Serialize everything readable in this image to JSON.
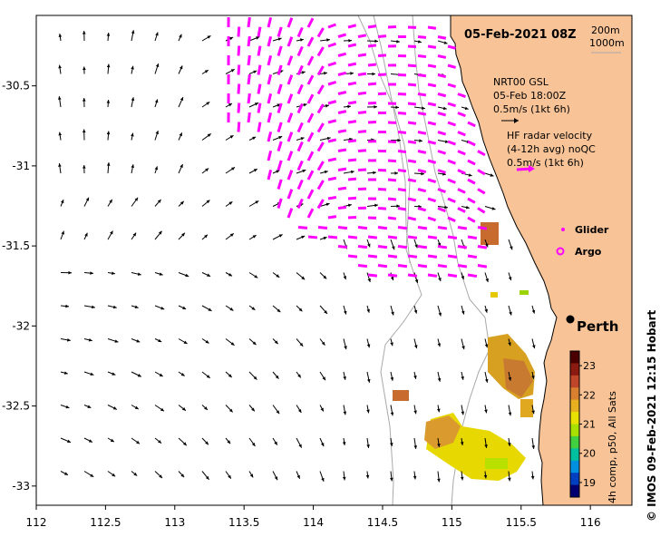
{
  "map": {
    "title": "05-Feb-2021 08Z",
    "lon_range": [
      112,
      116.3
    ],
    "lat_range": [
      -33.12,
      -30.06
    ],
    "x_ticks": [
      "112",
      "112.5",
      "113",
      "113.5",
      "114",
      "114.5",
      "115",
      "115.5",
      "116"
    ],
    "y_ticks": [
      "-30.5",
      "-31",
      "-31.5",
      "-32",
      "-32.5",
      "-33"
    ],
    "colors": {
      "land": "#F8C497",
      "radar_arrow": "#FF00FF",
      "model_arrow": "#000000",
      "isobath": "#A9A9A9"
    }
  },
  "legend": {
    "isobath_200": "200m",
    "isobath_1000": "1000m",
    "model_line1": "NRT00 GSL",
    "model_line2": "05-Feb 18:00Z",
    "model_scale": "0.5m/s (1kt 6h)",
    "radar_line1": "HF radar velocity",
    "radar_line2": "(4-12h avg) noQC",
    "radar_scale": "0.5m/s (1kt 6h)",
    "glider": "Glider",
    "argo": "Argo"
  },
  "city": {
    "name": "Perth",
    "lon": 115.86,
    "lat": -31.95
  },
  "colorbar": {
    "label": "4h comp, p50, All Sats",
    "ticks": [
      "23",
      "22",
      "21",
      "20",
      "19"
    ],
    "range": [
      18.5,
      23.5
    ]
  },
  "credit": "© IMOS 09-Feb-2021 12:15 Hobart"
}
